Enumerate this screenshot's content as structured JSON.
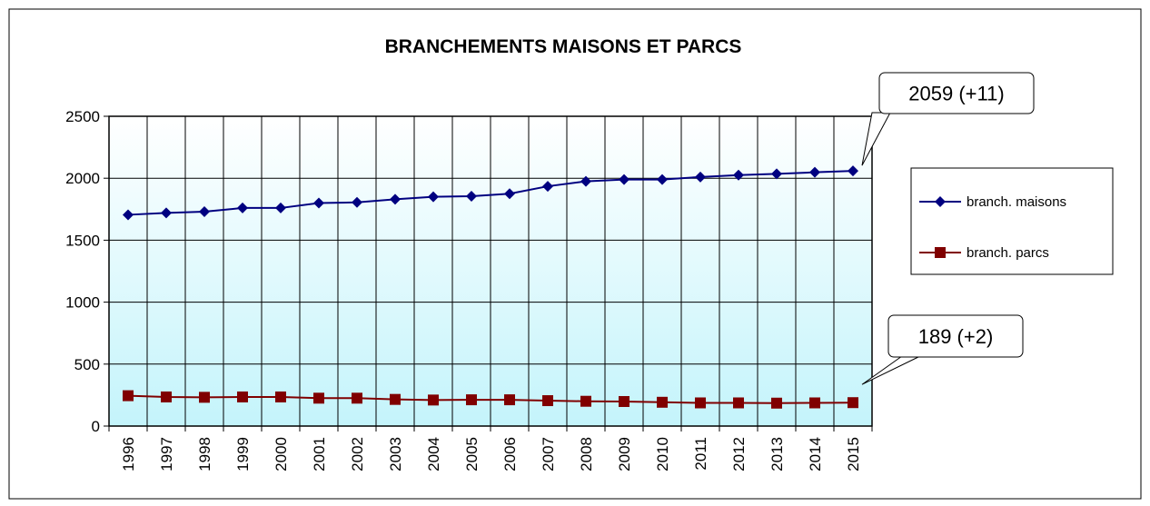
{
  "chart_data": {
    "type": "line",
    "title": "BRANCHEMENTS MAISONS ET PARCS",
    "categories": [
      "1996",
      "1997",
      "1998",
      "1999",
      "2000",
      "2001",
      "2002",
      "2003",
      "2004",
      "2005",
      "2006",
      "2007",
      "2008",
      "2009",
      "2010",
      "2011",
      "2012",
      "2013",
      "2014",
      "2015"
    ],
    "series": [
      {
        "name": "branch. maisons",
        "color": "#000080",
        "marker": "diamond",
        "values": [
          1705,
          1720,
          1730,
          1760,
          1760,
          1800,
          1805,
          1830,
          1850,
          1855,
          1875,
          1935,
          1975,
          1990,
          1990,
          2010,
          2025,
          2035,
          2048,
          2059
        ]
      },
      {
        "name": "branch. parcs",
        "color": "#800000",
        "marker": "square",
        "values": [
          245,
          235,
          232,
          235,
          235,
          225,
          225,
          215,
          210,
          212,
          212,
          205,
          200,
          198,
          192,
          187,
          187,
          185,
          187,
          189
        ]
      }
    ],
    "annotations": [
      {
        "text": "2059 (+11)"
      },
      {
        "text": "189 (+2)"
      }
    ],
    "ylim": [
      0,
      2500
    ],
    "yticks": [
      0,
      500,
      1000,
      1500,
      2000,
      2500
    ],
    "grid": true,
    "legend": "right"
  }
}
